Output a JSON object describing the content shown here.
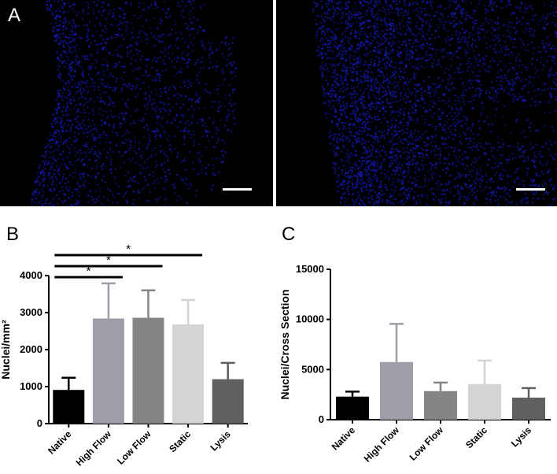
{
  "panels": {
    "a_label": "A",
    "b_label": "B",
    "c_label": "C"
  },
  "colors": {
    "nuclei": "#1a2cff",
    "background": "#000000",
    "scale_bar": "#ffffff"
  },
  "chart_data": [
    {
      "type": "bar",
      "panel": "B",
      "categories": [
        "Native",
        "High Flow",
        "Low Flow",
        "Static",
        "Lysis"
      ],
      "values": [
        910,
        2840,
        2860,
        2680,
        1200
      ],
      "errors": [
        330,
        950,
        740,
        660,
        440
      ],
      "colors": [
        "#000000",
        "#9d9ea8",
        "#858585",
        "#d4d4d4",
        "#606060"
      ],
      "ylabel": "Nuclei/mm²",
      "ylim": [
        0,
        4000
      ],
      "yticks": [
        0,
        1000,
        2000,
        3000,
        4000
      ],
      "ytick_labels": [
        "0",
        "1000",
        "2000",
        "3000",
        "4000"
      ],
      "significance": [
        {
          "from": "Native",
          "to": "High Flow",
          "label": "*"
        },
        {
          "from": "Native",
          "to": "Low Flow",
          "label": "*"
        },
        {
          "from": "Native",
          "to": "Static",
          "label": "*"
        }
      ]
    },
    {
      "type": "bar",
      "panel": "C",
      "categories": [
        "Native",
        "High Flow",
        "Low Flow",
        "Static",
        "Lysis"
      ],
      "values": [
        2300,
        5750,
        2850,
        3550,
        2200
      ],
      "errors": [
        500,
        3800,
        850,
        2350,
        950
      ],
      "colors": [
        "#000000",
        "#9d9ea8",
        "#858585",
        "#d4d4d4",
        "#606060"
      ],
      "ylabel": "Nuclei/Cross Section",
      "ylim": [
        0,
        15000
      ],
      "yticks": [
        0,
        5000,
        10000,
        15000
      ],
      "ytick_labels": [
        "0",
        "5000",
        "10000",
        "15000"
      ],
      "significance": []
    }
  ]
}
